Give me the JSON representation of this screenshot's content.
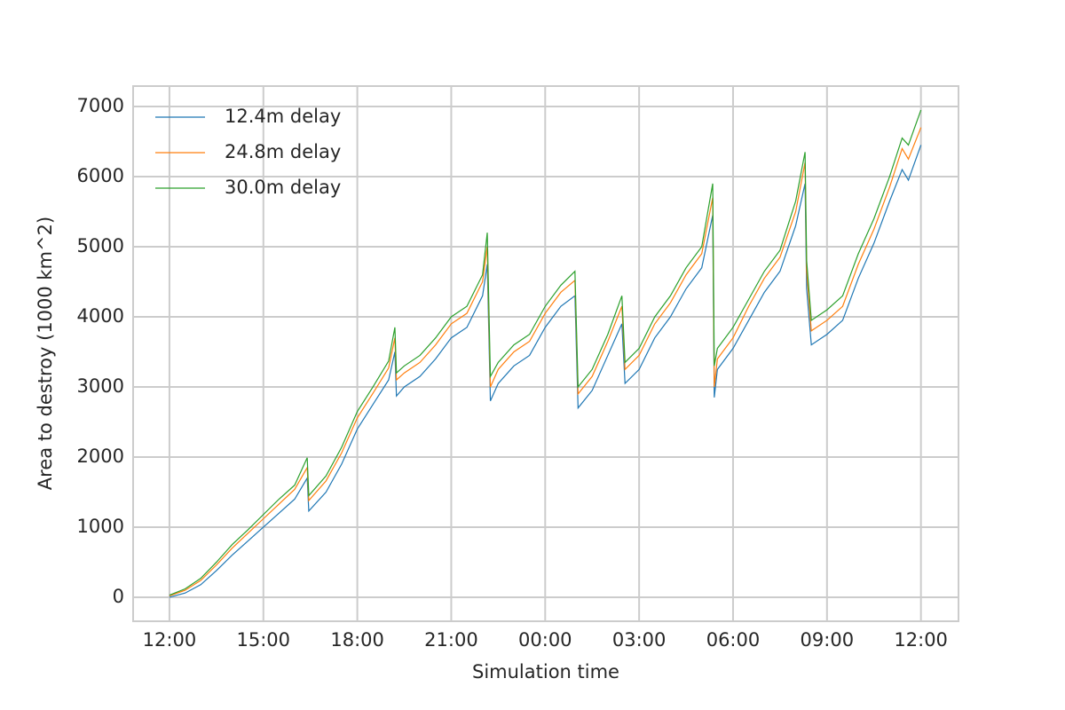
{
  "chart_data": {
    "type": "line",
    "xlabel": "Simulation time",
    "ylabel": "Area to destroy (1000 km^2)",
    "x": [
      0,
      0.5,
      1,
      1.5,
      2,
      2.5,
      3,
      3.5,
      4,
      4.4,
      4.45,
      5,
      5.5,
      6,
      6.5,
      7,
      7.2,
      7.25,
      7.5,
      8,
      8.5,
      9,
      9.5,
      10,
      10.15,
      10.25,
      10.5,
      11,
      11.5,
      12,
      12.5,
      12.95,
      13.05,
      13.5,
      14,
      14.45,
      14.55,
      15,
      15.5,
      16,
      16.5,
      17,
      17.35,
      17.4,
      17.5,
      18,
      18.5,
      19,
      19.5,
      20,
      20.3,
      20.35,
      20.5,
      21,
      21.5,
      22,
      22.5,
      23,
      23.4,
      23.6,
      24
    ],
    "series": [
      {
        "name": "12.4m delay",
        "color": "#1f77b4",
        "values": [
          0,
          60,
          180,
          380,
          600,
          800,
          1000,
          1200,
          1400,
          1700,
          1230,
          1500,
          1900,
          2400,
          2750,
          3100,
          3500,
          2870,
          3000,
          3150,
          3400,
          3700,
          3850,
          4300,
          4750,
          2800,
          3050,
          3300,
          3450,
          3850,
          4150,
          4300,
          2700,
          2950,
          3450,
          3900,
          3050,
          3250,
          3700,
          4000,
          4400,
          4700,
          5450,
          2850,
          3250,
          3550,
          3950,
          4350,
          4650,
          5300,
          5900,
          4400,
          3600,
          3750,
          3950,
          4550,
          5050,
          5650,
          6100,
          5950,
          6450
        ]
      },
      {
        "name": "24.8m delay",
        "color": "#ff7f0e",
        "values": [
          20,
          100,
          240,
          460,
          700,
          910,
          1120,
          1330,
          1540,
          1850,
          1380,
          1660,
          2060,
          2560,
          2910,
          3270,
          3700,
          3100,
          3200,
          3350,
          3600,
          3900,
          4050,
          4500,
          5000,
          3000,
          3250,
          3500,
          3650,
          4050,
          4350,
          4520,
          2900,
          3150,
          3650,
          4150,
          3250,
          3450,
          3900,
          4200,
          4600,
          4900,
          5700,
          3000,
          3400,
          3700,
          4150,
          4550,
          4850,
          5500,
          6200,
          4650,
          3800,
          3950,
          4150,
          4750,
          5250,
          5850,
          6400,
          6250,
          6700
        ]
      },
      {
        "name": "30.0m delay",
        "color": "#2ca02c",
        "values": [
          30,
          120,
          270,
          500,
          750,
          960,
          1180,
          1400,
          1600,
          1990,
          1450,
          1730,
          2140,
          2650,
          3000,
          3370,
          3850,
          3200,
          3300,
          3450,
          3700,
          4000,
          4150,
          4600,
          5200,
          3150,
          3350,
          3600,
          3750,
          4150,
          4450,
          4650,
          3000,
          3250,
          3750,
          4300,
          3350,
          3550,
          4000,
          4300,
          4700,
          5000,
          5900,
          3300,
          3550,
          3850,
          4250,
          4650,
          4950,
          5650,
          6350,
          4800,
          3950,
          4100,
          4300,
          4900,
          5400,
          6000,
          6550,
          6450,
          6950
        ]
      }
    ],
    "xlim": [
      -1.16,
      25.2
    ],
    "ylim": [
      -342,
      7291
    ],
    "xticks": [
      {
        "value": 0,
        "label": "12:00"
      },
      {
        "value": 3,
        "label": "15:00"
      },
      {
        "value": 6,
        "label": "18:00"
      },
      {
        "value": 9,
        "label": "21:00"
      },
      {
        "value": 12,
        "label": "00:00"
      },
      {
        "value": 15,
        "label": "03:00"
      },
      {
        "value": 18,
        "label": "06:00"
      },
      {
        "value": 21,
        "label": "09:00"
      },
      {
        "value": 24,
        "label": "12:00"
      }
    ],
    "yticks": [
      0,
      1000,
      2000,
      3000,
      4000,
      5000,
      6000,
      7000
    ],
    "grid": true,
    "legend": "upper-left"
  }
}
